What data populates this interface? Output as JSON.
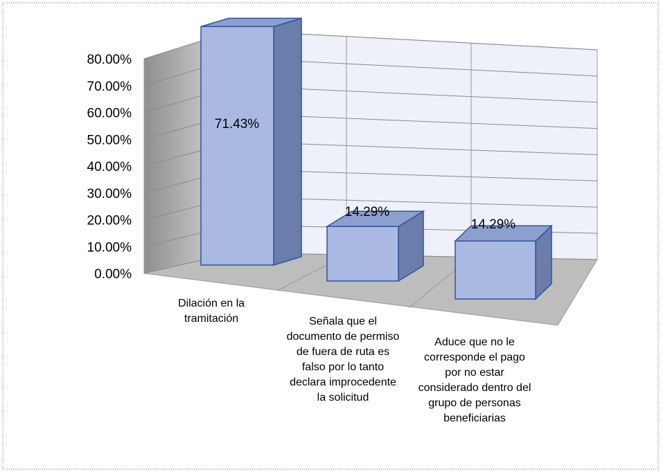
{
  "chart_data": {
    "type": "bar3d",
    "categories": [
      "Dilación en la tramitación",
      "Señala que  el documento de permiso de fuera de ruta es falso por lo tanto declara improcedente la solicitud",
      "Aduce que no le corresponde el pago por no estar considerado dentro del grupo de personas beneficiarias"
    ],
    "values": [
      71.43,
      14.29,
      14.29
    ],
    "value_labels": [
      "71.43%",
      "14.29%",
      "14.29%"
    ],
    "color": "#a9b9e2",
    "ylim": [
      0,
      80
    ],
    "yticks": [
      {
        "value": 0,
        "label": "0.00%"
      },
      {
        "value": 10,
        "label": "10.00%"
      },
      {
        "value": 20,
        "label": "20.00%"
      },
      {
        "value": 30,
        "label": "30.00%"
      },
      {
        "value": 40,
        "label": "40.00%"
      },
      {
        "value": 50,
        "label": "50.00%"
      },
      {
        "value": 60,
        "label": "60.00%"
      },
      {
        "value": 70,
        "label": "70.00%"
      },
      {
        "value": 80,
        "label": "80.00%"
      }
    ],
    "grid": true
  }
}
